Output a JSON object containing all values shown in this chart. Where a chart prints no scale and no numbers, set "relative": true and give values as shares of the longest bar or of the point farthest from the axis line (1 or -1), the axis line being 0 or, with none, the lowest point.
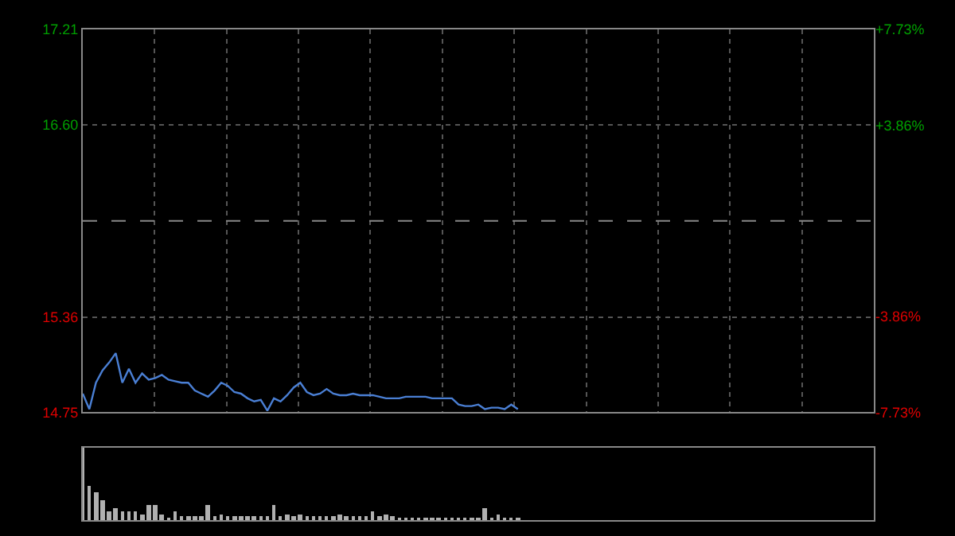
{
  "chart_data": [
    {
      "type": "line",
      "categories": [
        null,
        null,
        null,
        null,
        null,
        null,
        null,
        null,
        null,
        null,
        null,
        null,
        null,
        null,
        null,
        null,
        null,
        null,
        null,
        null,
        null,
        null,
        null,
        null,
        null,
        null,
        null,
        null,
        null,
        null,
        null,
        null,
        null,
        null,
        null,
        null,
        null,
        null,
        null,
        null,
        null,
        null,
        null,
        null,
        null,
        null,
        null,
        null,
        null,
        null,
        null,
        null,
        null,
        null,
        null,
        null,
        null,
        null,
        null,
        null,
        null,
        null,
        null,
        null,
        null,
        null,
        null,
        null,
        null,
        null,
        null,
        null,
        null,
        null,
        null,
        null,
        null,
        null,
        null,
        null,
        null,
        null,
        null,
        null,
        null,
        null,
        null,
        null,
        null,
        null,
        null,
        null,
        null,
        null,
        null,
        null,
        null,
        null,
        null,
        null,
        null,
        null,
        null,
        null,
        null,
        null,
        null,
        null,
        null,
        null,
        null,
        null,
        null,
        null,
        null,
        null,
        null,
        null,
        null,
        null,
        null
      ],
      "ylim": [
        14.75,
        17.21
      ],
      "yticks": [
        {
          "value": 14.75,
          "label": "14.75"
        },
        {
          "value": 15.36,
          "label": "15.36"
        },
        {
          "value": 16.6,
          "label": "16.60"
        },
        {
          "value": 17.21,
          "label": "17.21"
        }
      ],
      "y2lim": [
        -7.73,
        7.73
      ],
      "y2ticks": [
        {
          "value": -7.73,
          "label": "-7.73%"
        },
        {
          "value": -3.86,
          "label": "-3.86%"
        },
        {
          "value": 3.86,
          "label": "+3.86%"
        },
        {
          "value": 7.73,
          "label": "+7.73%"
        }
      ],
      "grid": true,
      "marker": "none",
      "line_style": "solid",
      "ref_lines": [
        {
          "axis": "y2",
          "value": 0,
          "line_style": "dashed",
          "color": "#888888"
        }
      ],
      "series": [
        {
          "color": "#4a7fd4",
          "values": [
            14.87,
            14.77,
            14.94,
            15.02,
            15.07,
            15.13,
            14.94,
            15.03,
            14.94,
            15.0,
            14.96,
            14.97,
            14.99,
            14.96,
            14.95,
            14.94,
            14.94,
            14.89,
            14.87,
            14.85,
            14.89,
            14.94,
            14.92,
            14.88,
            14.87,
            14.84,
            14.82,
            14.83,
            14.76,
            14.84,
            14.82,
            14.86,
            14.91,
            14.94,
            14.88,
            14.86,
            14.87,
            14.9,
            14.87,
            14.86,
            14.86,
            14.87,
            14.86,
            14.86,
            14.86,
            14.85,
            14.84,
            14.84,
            14.84,
            14.85,
            14.85,
            14.85,
            14.85,
            14.84,
            14.84,
            14.84,
            14.84,
            14.8,
            14.79,
            14.79,
            14.8,
            14.77,
            14.78,
            14.78,
            14.77,
            14.8,
            14.77,
            null,
            null,
            null,
            null,
            null,
            null,
            null,
            null,
            null,
            null,
            null,
            null,
            null,
            null,
            null,
            null,
            null,
            null,
            null,
            null,
            null,
            null,
            null,
            null,
            null,
            null,
            null,
            null,
            null,
            null,
            null,
            null,
            null,
            null,
            null,
            null,
            null,
            null,
            null,
            null,
            null,
            null,
            null,
            null,
            null,
            null,
            null,
            null,
            null,
            null,
            null,
            null,
            null,
            null
          ]
        }
      ]
    },
    {
      "type": "bar",
      "relative": true,
      "categories": [
        null,
        null,
        null,
        null,
        null,
        null,
        null,
        null,
        null,
        null,
        null,
        null,
        null,
        null,
        null,
        null,
        null,
        null,
        null,
        null,
        null,
        null,
        null,
        null,
        null,
        null,
        null,
        null,
        null,
        null,
        null,
        null,
        null,
        null,
        null,
        null,
        null,
        null,
        null,
        null,
        null,
        null,
        null,
        null,
        null,
        null,
        null,
        null,
        null,
        null,
        null,
        null,
        null,
        null,
        null,
        null,
        null,
        null,
        null,
        null,
        null,
        null,
        null,
        null,
        null,
        null,
        null,
        null,
        null,
        null,
        null,
        null,
        null,
        null,
        null,
        null,
        null,
        null,
        null,
        null,
        null,
        null,
        null,
        null,
        null,
        null,
        null,
        null,
        null,
        null,
        null,
        null,
        null,
        null,
        null,
        null,
        null,
        null,
        null,
        null,
        null,
        null,
        null,
        null,
        null,
        null,
        null,
        null,
        null,
        null,
        null,
        null,
        null,
        null,
        null,
        null,
        null,
        null,
        null,
        null,
        null
      ],
      "series": [
        {
          "color": "#b0b0b0",
          "values": [
            1.0,
            0.48,
            0.38,
            0.27,
            0.13,
            0.16,
            0.13,
            0.13,
            0.13,
            0.09,
            0.21,
            0.21,
            0.07,
            0.04,
            0.13,
            0.06,
            0.05,
            0.06,
            0.06,
            0.21,
            0.05,
            0.07,
            0.05,
            0.06,
            0.05,
            0.06,
            0.05,
            0.06,
            0.05,
            0.21,
            0.06,
            0.07,
            0.05,
            0.07,
            0.06,
            0.05,
            0.05,
            0.06,
            0.05,
            0.09,
            0.05,
            0.06,
            0.05,
            0.06,
            0.13,
            0.05,
            0.07,
            0.05,
            0.04,
            0.04,
            0.04,
            0.03,
            0.03,
            0.03,
            0.04,
            0.04,
            0.04,
            0.04,
            0.04,
            0.04,
            0.04,
            0.16,
            0.04,
            0.09,
            0.04,
            0.04,
            0.03,
            null,
            null,
            null,
            null,
            null,
            null,
            null,
            null,
            null,
            null,
            null,
            null,
            null,
            null,
            null,
            null,
            null,
            null,
            null,
            null,
            null,
            null,
            null,
            null,
            null,
            null,
            null,
            null,
            null,
            null,
            null,
            null,
            null,
            null,
            null,
            null,
            null,
            null,
            null,
            null,
            null,
            null,
            null,
            null,
            null,
            null,
            null,
            null,
            null,
            null,
            null,
            null,
            null,
            null
          ]
        }
      ]
    }
  ]
}
